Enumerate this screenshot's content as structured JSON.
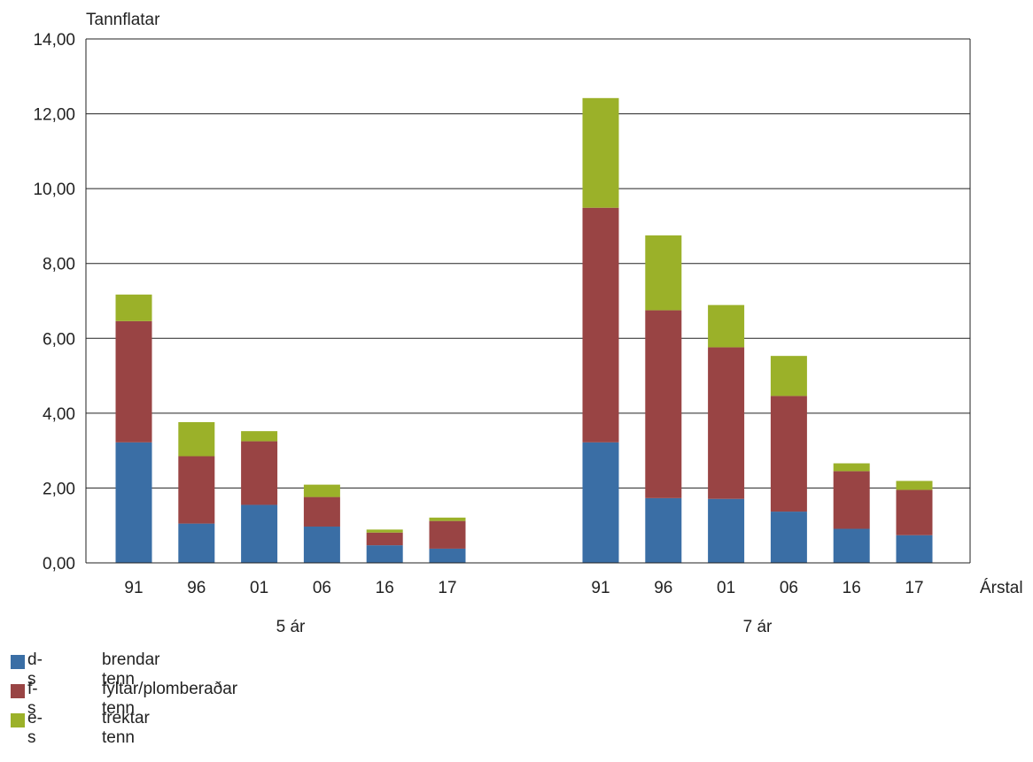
{
  "chart_data": {
    "type": "bar",
    "stacked": true,
    "ylabel": "Tannflatar",
    "xlabel": "Árstal",
    "ylim": [
      0,
      14
    ],
    "yticks": [
      "0,00",
      "2,00",
      "4,00",
      "6,00",
      "8,00",
      "10,00",
      "12,00",
      "14,00"
    ],
    "grid": true,
    "groups": [
      {
        "label": "5 ár",
        "categories": [
          "91",
          "96",
          "01",
          "06",
          "16",
          "17"
        ]
      },
      {
        "label": "7 ár",
        "categories": [
          "91",
          "96",
          "01",
          "06",
          "16",
          "17"
        ]
      }
    ],
    "series": [
      {
        "name": "d-s",
        "description": "brendar tenn",
        "color": "#3a6ea5",
        "values": [
          3.22,
          1.05,
          1.55,
          0.97,
          0.47,
          0.38,
          3.22,
          1.73,
          1.71,
          1.37,
          0.91,
          0.74
        ]
      },
      {
        "name": "f-s",
        "description": "fyltar/plomberaðar tenn",
        "color": "#994444",
        "values": [
          3.24,
          1.8,
          1.7,
          0.79,
          0.34,
          0.74,
          6.27,
          5.02,
          4.05,
          3.09,
          1.54,
          1.21
        ]
      },
      {
        "name": "e-s",
        "description": "trektar tenn",
        "color": "#9bb129",
        "values": [
          0.71,
          0.91,
          0.27,
          0.33,
          0.08,
          0.09,
          2.93,
          2.0,
          1.13,
          1.07,
          0.21,
          0.24
        ]
      }
    ]
  }
}
